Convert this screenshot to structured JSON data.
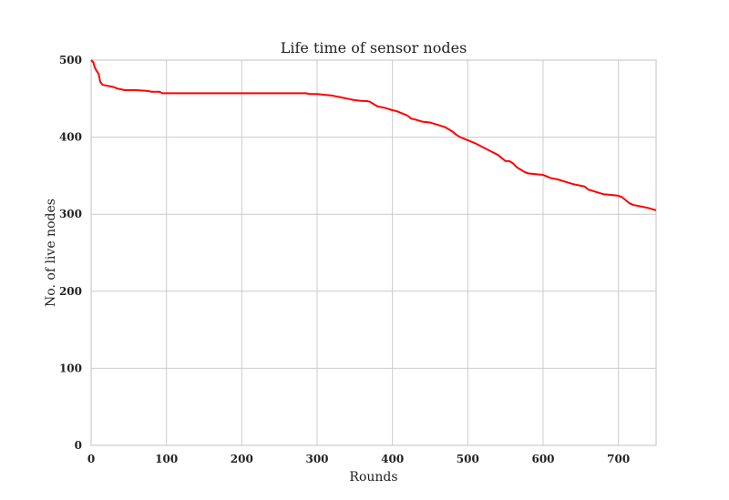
{
  "chart_data": {
    "type": "line",
    "title": "Life time of sensor nodes",
    "xlabel": "Rounds",
    "ylabel": "No. of live nodes",
    "xlim": [
      0,
      750
    ],
    "ylim": [
      0,
      500
    ],
    "xticks": [
      0,
      100,
      200,
      300,
      400,
      500,
      600,
      700
    ],
    "yticks": [
      0,
      100,
      200,
      300,
      400,
      500
    ],
    "grid": true,
    "legend": "none",
    "series": [
      {
        "color": "#ff0000",
        "x": [
          0,
          3,
          5,
          8,
          10,
          12,
          15,
          20,
          25,
          30,
          35,
          40,
          45,
          50,
          60,
          75,
          80,
          90,
          95,
          100,
          150,
          200,
          250,
          285,
          290,
          300,
          310,
          320,
          330,
          340,
          350,
          360,
          365,
          370,
          375,
          380,
          390,
          400,
          405,
          410,
          415,
          420,
          425,
          430,
          440,
          450,
          460,
          470,
          475,
          480,
          485,
          490,
          495,
          500,
          510,
          520,
          530,
          540,
          545,
          550,
          555,
          560,
          565,
          570,
          575,
          580,
          590,
          600,
          610,
          620,
          630,
          640,
          650,
          655,
          660,
          670,
          680,
          690,
          700,
          705,
          710,
          715,
          720,
          730,
          740,
          750
        ],
        "y": [
          500,
          497,
          490,
          485,
          482,
          472,
          468,
          467,
          466,
          465,
          463,
          462,
          461,
          461,
          461,
          460,
          459,
          459,
          457,
          457,
          457,
          457,
          457,
          457,
          456,
          456,
          455,
          454,
          452,
          450,
          448,
          447,
          447,
          446,
          443,
          440,
          438,
          435,
          434,
          432,
          430,
          428,
          424,
          423,
          420,
          419,
          416,
          413,
          410,
          407,
          403,
          400,
          398,
          396,
          392,
          387,
          382,
          377,
          373,
          369,
          369,
          366,
          361,
          358,
          355,
          353,
          352,
          351,
          347,
          345,
          342,
          339,
          337,
          336,
          332,
          329,
          326,
          325,
          324,
          322,
          318,
          314,
          312,
          310,
          308,
          305
        ]
      }
    ]
  }
}
